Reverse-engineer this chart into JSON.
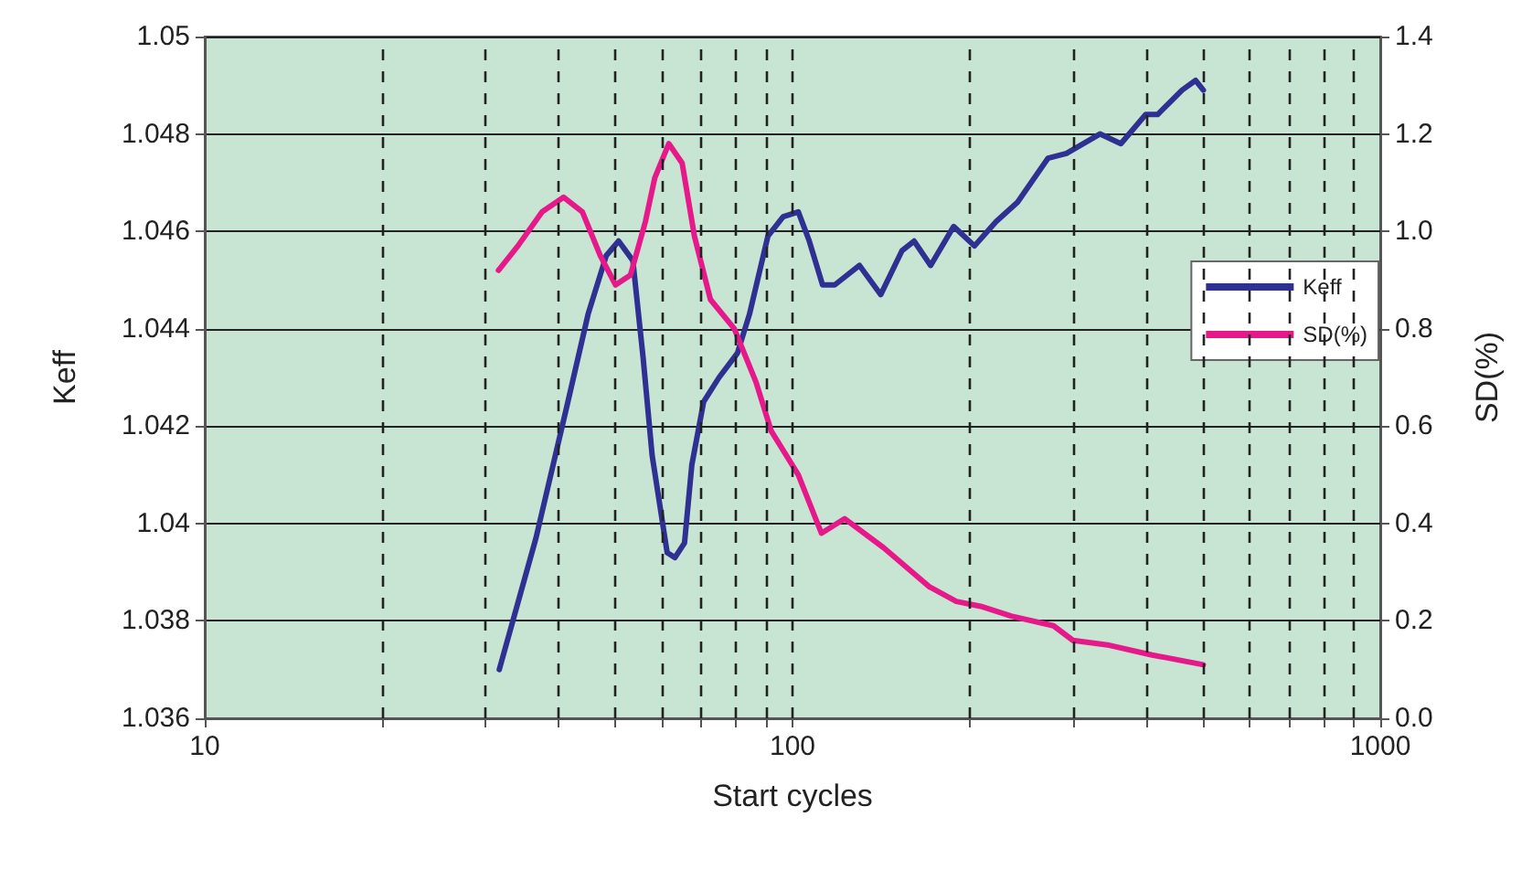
{
  "chart_data": {
    "type": "line",
    "xlabel": "Start cycles",
    "ylabel": "Keff",
    "y2label": "SD(%)",
    "log": "x",
    "grid": true,
    "legend": "right",
    "marker": "none",
    "line_style": "solid",
    "xlim": [
      10,
      1000
    ],
    "xticks": [
      10,
      {
        "value": 20,
        "label": null
      },
      {
        "value": 30,
        "label": null
      },
      {
        "value": 40,
        "label": null
      },
      {
        "value": 50,
        "label": null
      },
      {
        "value": 60,
        "label": null
      },
      {
        "value": 70,
        "label": null
      },
      {
        "value": 80,
        "label": null
      },
      {
        "value": 90,
        "label": null
      },
      100,
      {
        "value": 200,
        "label": null
      },
      {
        "value": 300,
        "label": null
      },
      {
        "value": 400,
        "label": null
      },
      {
        "value": 500,
        "label": null
      },
      {
        "value": 600,
        "label": null
      },
      {
        "value": 700,
        "label": null
      },
      {
        "value": 800,
        "label": null
      },
      {
        "value": 900,
        "label": null
      },
      1000
    ],
    "ylim": [
      1.036,
      1.05
    ],
    "yticks": [
      1.036,
      1.038,
      1.04,
      1.042,
      1.044,
      1.046,
      1.048,
      1.05
    ],
    "y2lim": [
      0,
      1.4
    ],
    "y2ticks": [
      {
        "value": 0,
        "label": "0.0"
      },
      0.2,
      0.4,
      0.6,
      0.8,
      {
        "value": 1,
        "label": "1.0"
      },
      1.2,
      1.4
    ],
    "series": [
      {
        "name": "Keff",
        "color": "#2e3192",
        "x": [
          31.7,
          36.6,
          41.3,
          44.9,
          48.2,
          50.6,
          53.5,
          55.7,
          57.7,
          61.2,
          63.1,
          65.5,
          67.4,
          70.6,
          75,
          80.6,
          84.5,
          90.8,
          96.4,
          102.3,
          106.8,
          112.5,
          118,
          130,
          141.3,
          153.5,
          161,
          171.8,
          188,
          204,
          222,
          241.5,
          272,
          292.5,
          333.5,
          362,
          399,
          418,
          460,
          485,
          500
        ],
        "values": [
          1.037,
          1.0397,
          1.0424,
          1.0443,
          1.0455,
          1.0458,
          1.0454,
          1.0434,
          1.0414,
          1.0394,
          1.0393,
          1.0396,
          1.0412,
          1.0425,
          1.043,
          1.0435,
          1.0443,
          1.0459,
          1.0463,
          1.0464,
          1.0458,
          1.0449,
          1.0449,
          1.0453,
          1.0447,
          1.0456,
          1.0458,
          1.0453,
          1.0461,
          1.0457,
          1.0462,
          1.0466,
          1.0475,
          1.0476,
          1.048,
          1.0478,
          1.0484,
          1.0484,
          1.0489,
          1.0491,
          1.0489
        ]
      },
      {
        "name": "SD(%)",
        "color": "#e6198a",
        "axis": "y2",
        "x": [
          31.6,
          34.1,
          37.5,
          40.8,
          43.9,
          47.1,
          50,
          53,
          56.2,
          58.3,
          61.6,
          64.9,
          68.1,
          72.5,
          79.6,
          86.7,
          92,
          102.3,
          112,
          122.7,
          143,
          171,
          190,
          209,
          235.5,
          278,
          300,
          346,
          409,
          500
        ],
        "values": [
          0.92,
          0.97,
          1.04,
          1.07,
          1.04,
          0.95,
          0.89,
          0.91,
          1.02,
          1.11,
          1.18,
          1.14,
          0.99,
          0.86,
          0.8,
          0.69,
          0.59,
          0.5,
          0.38,
          0.41,
          0.35,
          0.27,
          0.24,
          0.23,
          0.21,
          0.19,
          0.16,
          0.15,
          0.13,
          0.11
        ]
      }
    ]
  }
}
